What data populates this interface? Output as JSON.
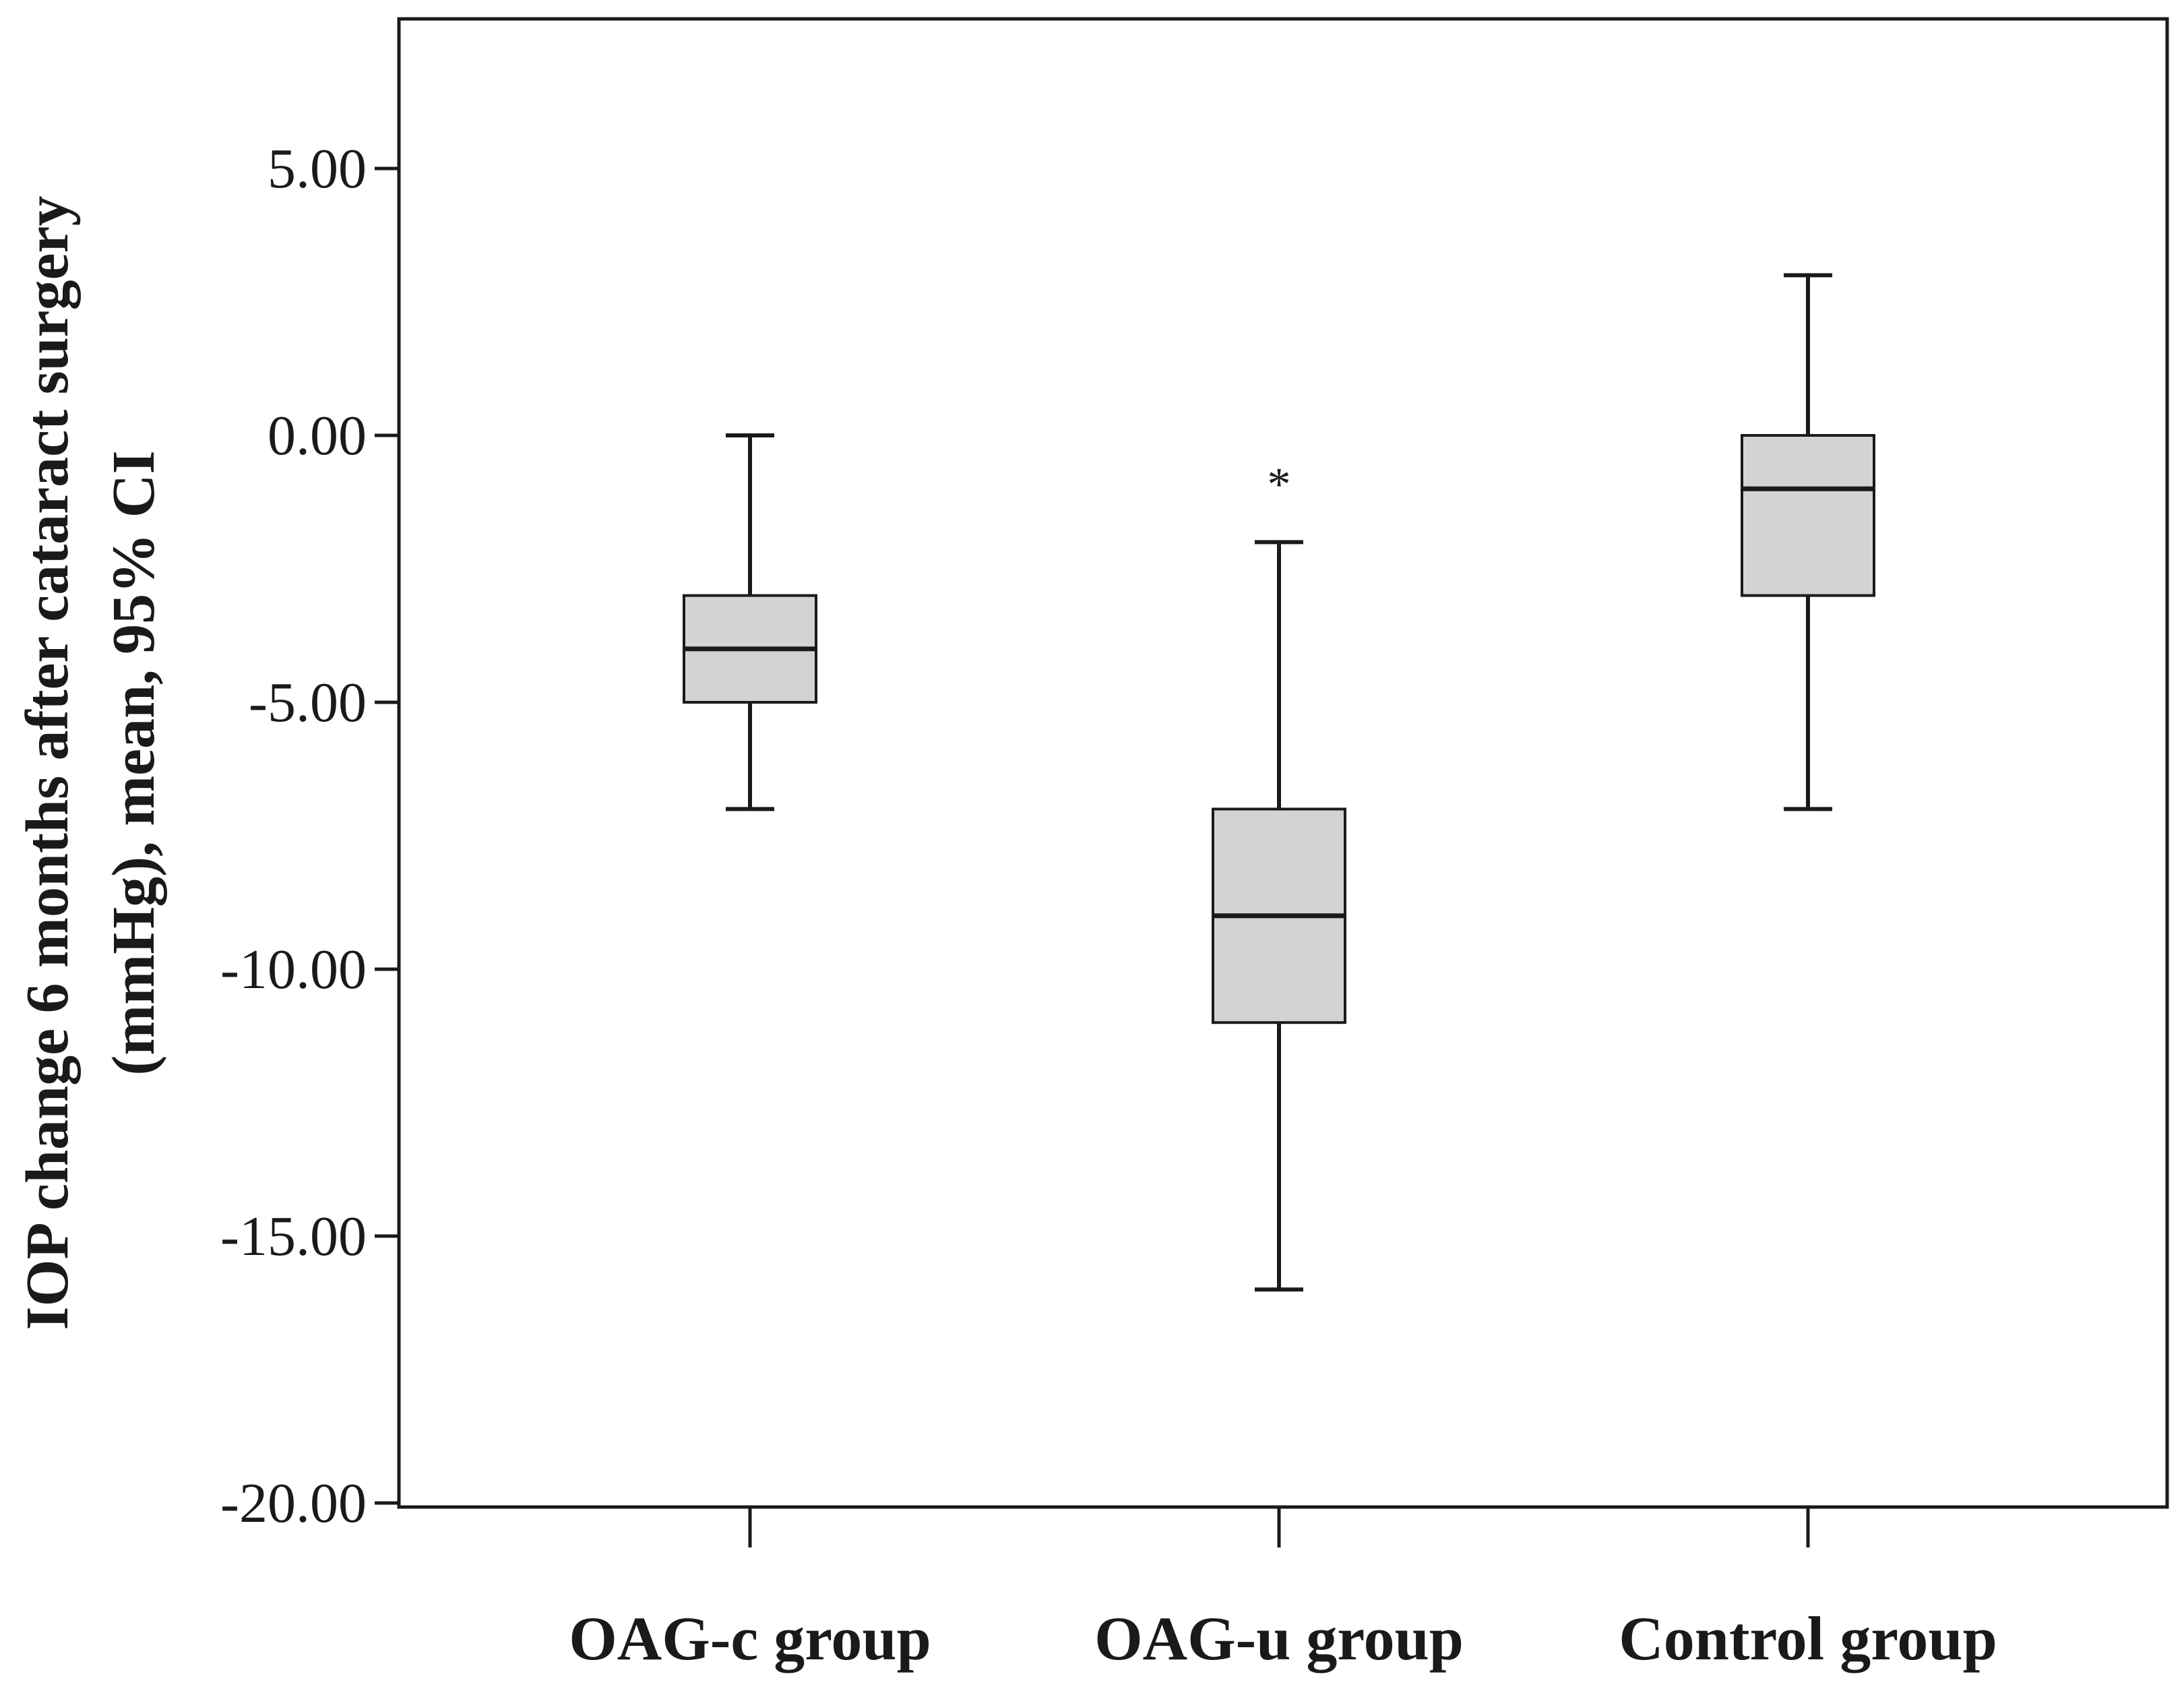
{
  "chart_data": {
    "type": "boxplot",
    "title": "",
    "xlabel": "",
    "ylabel_lines": [
      "IOP change 6 months after cataract surgery",
      "(mmHg), mean, 95% CI"
    ],
    "ylim": [
      -20,
      7.8
    ],
    "yticks": [
      5,
      0,
      -5,
      -10,
      -15,
      -20
    ],
    "ytick_labels": [
      "5.00",
      "0.00",
      "-5.00",
      "-10.00",
      "-15.00",
      "-20.00"
    ],
    "grid": false,
    "categories": [
      "OAG-c group",
      "OAG-u group",
      "Control group"
    ],
    "boxes": [
      {
        "name": "OAG-c group",
        "whisker_low": -7,
        "q1": -5,
        "median": -4,
        "q3": -3,
        "whisker_high": 0,
        "outliers": []
      },
      {
        "name": "OAG-u group",
        "whisker_low": -16,
        "q1": -11,
        "median": -9,
        "q3": -7,
        "whisker_high": -2,
        "outliers": [
          -0.6
        ]
      },
      {
        "name": "Control group",
        "whisker_low": -7,
        "q1": -3,
        "median": -1,
        "q3": 0,
        "whisker_high": 3,
        "outliers": []
      }
    ],
    "outlier_marker": "*",
    "colors": {
      "box_fill": "#d3d3d3",
      "stroke": "#1a1a1a"
    }
  }
}
